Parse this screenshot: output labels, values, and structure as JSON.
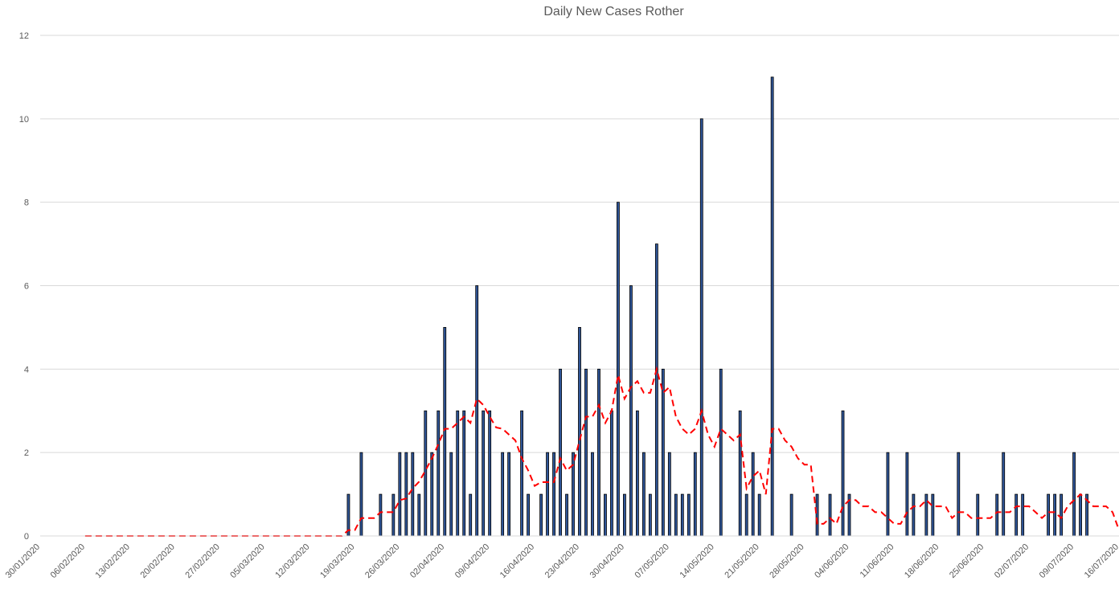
{
  "chart_data": {
    "type": "bar",
    "title": "Daily New Cases Rother",
    "xlabel": "",
    "ylabel": "",
    "ylim": [
      0,
      12
    ],
    "y_ticks": [
      0,
      2,
      4,
      6,
      8,
      10,
      12
    ],
    "x_range": [
      "30/01/2020",
      "16/07/2020"
    ],
    "x_tick_labels": [
      "30/01/2020",
      "06/02/2020",
      "13/02/2020",
      "20/02/2020",
      "27/02/2020",
      "05/03/2020",
      "12/03/2020",
      "19/03/2020",
      "26/03/2020",
      "02/04/2020",
      "09/04/2020",
      "16/04/2020",
      "23/04/2020",
      "30/04/2020",
      "07/05/2020",
      "14/05/2020",
      "21/05/2020",
      "28/05/2020",
      "04/06/2020",
      "11/06/2020",
      "18/06/2020",
      "25/06/2020",
      "02/07/2020",
      "09/07/2020",
      "16/07/2020"
    ],
    "grid": true,
    "legend": "none",
    "series": [
      {
        "type": "bar",
        "color": "#2F5597",
        "points": [
          [
            "18/03/2020",
            1
          ],
          [
            "20/03/2020",
            2
          ],
          [
            "23/03/2020",
            1
          ],
          [
            "25/03/2020",
            1
          ],
          [
            "26/03/2020",
            2
          ],
          [
            "27/03/2020",
            2
          ],
          [
            "28/03/2020",
            2
          ],
          [
            "29/03/2020",
            1
          ],
          [
            "30/03/2020",
            3
          ],
          [
            "31/03/2020",
            2
          ],
          [
            "01/04/2020",
            3
          ],
          [
            "02/04/2020",
            5
          ],
          [
            "03/04/2020",
            2
          ],
          [
            "04/04/2020",
            3
          ],
          [
            "05/04/2020",
            3
          ],
          [
            "06/04/2020",
            1
          ],
          [
            "07/04/2020",
            6
          ],
          [
            "08/04/2020",
            3
          ],
          [
            "09/04/2020",
            3
          ],
          [
            "11/04/2020",
            2
          ],
          [
            "12/04/2020",
            2
          ],
          [
            "14/04/2020",
            3
          ],
          [
            "15/04/2020",
            1
          ],
          [
            "17/04/2020",
            1
          ],
          [
            "18/04/2020",
            2
          ],
          [
            "19/04/2020",
            2
          ],
          [
            "20/04/2020",
            4
          ],
          [
            "21/04/2020",
            1
          ],
          [
            "22/04/2020",
            2
          ],
          [
            "23/04/2020",
            5
          ],
          [
            "24/04/2020",
            4
          ],
          [
            "25/04/2020",
            2
          ],
          [
            "26/04/2020",
            4
          ],
          [
            "27/04/2020",
            1
          ],
          [
            "28/04/2020",
            3
          ],
          [
            "29/04/2020",
            8
          ],
          [
            "30/04/2020",
            1
          ],
          [
            "01/05/2020",
            6
          ],
          [
            "02/05/2020",
            3
          ],
          [
            "03/05/2020",
            2
          ],
          [
            "04/05/2020",
            1
          ],
          [
            "05/05/2020",
            7
          ],
          [
            "06/05/2020",
            4
          ],
          [
            "07/05/2020",
            2
          ],
          [
            "08/05/2020",
            1
          ],
          [
            "09/05/2020",
            1
          ],
          [
            "10/05/2020",
            1
          ],
          [
            "11/05/2020",
            2
          ],
          [
            "12/05/2020",
            10
          ],
          [
            "15/05/2020",
            4
          ],
          [
            "18/05/2020",
            3
          ],
          [
            "19/05/2020",
            1
          ],
          [
            "20/05/2020",
            2
          ],
          [
            "21/05/2020",
            1
          ],
          [
            "23/05/2020",
            11
          ],
          [
            "26/05/2020",
            1
          ],
          [
            "30/05/2020",
            1
          ],
          [
            "01/06/2020",
            1
          ],
          [
            "03/06/2020",
            3
          ],
          [
            "04/06/2020",
            1
          ],
          [
            "10/06/2020",
            2
          ],
          [
            "13/06/2020",
            2
          ],
          [
            "14/06/2020",
            1
          ],
          [
            "16/06/2020",
            1
          ],
          [
            "17/06/2020",
            1
          ],
          [
            "21/06/2020",
            2
          ],
          [
            "24/06/2020",
            1
          ],
          [
            "27/06/2020",
            1
          ],
          [
            "28/06/2020",
            2
          ],
          [
            "30/06/2020",
            1
          ],
          [
            "01/07/2020",
            1
          ],
          [
            "05/07/2020",
            1
          ],
          [
            "06/07/2020",
            1
          ],
          [
            "07/07/2020",
            1
          ],
          [
            "09/07/2020",
            2
          ],
          [
            "10/07/2020",
            1
          ],
          [
            "11/07/2020",
            1
          ]
        ]
      },
      {
        "type": "line",
        "style": "dashed",
        "color": "#FF0000",
        "points": [
          [
            "06/02/2020",
            0
          ],
          [
            "17/03/2020",
            0
          ],
          [
            "18/03/2020",
            0.14
          ],
          [
            "19/03/2020",
            0.14
          ],
          [
            "20/03/2020",
            0.43
          ],
          [
            "22/03/2020",
            0.43
          ],
          [
            "23/03/2020",
            0.57
          ],
          [
            "25/03/2020",
            0.57
          ],
          [
            "26/03/2020",
            0.86
          ],
          [
            "27/03/2020",
            0.9
          ],
          [
            "28/03/2020",
            1.14
          ],
          [
            "29/03/2020",
            1.3
          ],
          [
            "30/03/2020",
            1.57
          ],
          [
            "31/03/2020",
            1.86
          ],
          [
            "01/04/2020",
            2.2
          ],
          [
            "02/04/2020",
            2.57
          ],
          [
            "03/04/2020",
            2.57
          ],
          [
            "04/04/2020",
            2.71
          ],
          [
            "05/04/2020",
            2.86
          ],
          [
            "06/04/2020",
            2.71
          ],
          [
            "07/04/2020",
            3.29
          ],
          [
            "08/04/2020",
            3.14
          ],
          [
            "09/04/2020",
            2.86
          ],
          [
            "10/04/2020",
            2.6
          ],
          [
            "11/04/2020",
            2.57
          ],
          [
            "13/04/2020",
            2.29
          ],
          [
            "14/04/2020",
            1.86
          ],
          [
            "15/04/2020",
            1.57
          ],
          [
            "16/04/2020",
            1.2
          ],
          [
            "17/04/2020",
            1.29
          ],
          [
            "18/04/2020",
            1.29
          ],
          [
            "19/04/2020",
            1.29
          ],
          [
            "20/04/2020",
            1.86
          ],
          [
            "21/04/2020",
            1.57
          ],
          [
            "22/04/2020",
            1.71
          ],
          [
            "23/04/2020",
            2.29
          ],
          [
            "24/04/2020",
            2.86
          ],
          [
            "25/04/2020",
            2.86
          ],
          [
            "26/04/2020",
            3.14
          ],
          [
            "27/04/2020",
            2.71
          ],
          [
            "28/04/2020",
            3.0
          ],
          [
            "29/04/2020",
            3.86
          ],
          [
            "30/04/2020",
            3.29
          ],
          [
            "01/05/2020",
            3.57
          ],
          [
            "02/05/2020",
            3.71
          ],
          [
            "03/05/2020",
            3.43
          ],
          [
            "04/05/2020",
            3.43
          ],
          [
            "05/05/2020",
            4.0
          ],
          [
            "06/05/2020",
            3.43
          ],
          [
            "07/05/2020",
            3.57
          ],
          [
            "08/05/2020",
            2.86
          ],
          [
            "09/05/2020",
            2.57
          ],
          [
            "10/05/2020",
            2.43
          ],
          [
            "11/05/2020",
            2.57
          ],
          [
            "12/05/2020",
            3.0
          ],
          [
            "13/05/2020",
            2.43
          ],
          [
            "14/05/2020",
            2.14
          ],
          [
            "15/05/2020",
            2.57
          ],
          [
            "16/05/2020",
            2.43
          ],
          [
            "17/05/2020",
            2.29
          ],
          [
            "18/05/2020",
            2.43
          ],
          [
            "19/05/2020",
            1.14
          ],
          [
            "20/05/2020",
            1.43
          ],
          [
            "21/05/2020",
            1.57
          ],
          [
            "22/05/2020",
            1.0
          ],
          [
            "23/05/2020",
            2.57
          ],
          [
            "24/05/2020",
            2.57
          ],
          [
            "25/05/2020",
            2.29
          ],
          [
            "26/05/2020",
            2.14
          ],
          [
            "27/05/2020",
            1.86
          ],
          [
            "28/05/2020",
            1.71
          ],
          [
            "29/05/2020",
            1.71
          ],
          [
            "30/05/2020",
            0.29
          ],
          [
            "31/05/2020",
            0.29
          ],
          [
            "01/06/2020",
            0.43
          ],
          [
            "02/06/2020",
            0.29
          ],
          [
            "03/06/2020",
            0.71
          ],
          [
            "04/06/2020",
            0.86
          ],
          [
            "05/06/2020",
            0.86
          ],
          [
            "06/06/2020",
            0.71
          ],
          [
            "07/06/2020",
            0.71
          ],
          [
            "08/06/2020",
            0.57
          ],
          [
            "09/06/2020",
            0.57
          ],
          [
            "10/06/2020",
            0.43
          ],
          [
            "11/06/2020",
            0.29
          ],
          [
            "12/06/2020",
            0.29
          ],
          [
            "13/06/2020",
            0.57
          ],
          [
            "14/06/2020",
            0.71
          ],
          [
            "15/06/2020",
            0.71
          ],
          [
            "16/06/2020",
            0.86
          ],
          [
            "17/06/2020",
            0.71
          ],
          [
            "19/06/2020",
            0.71
          ],
          [
            "20/06/2020",
            0.43
          ],
          [
            "21/06/2020",
            0.57
          ],
          [
            "22/06/2020",
            0.57
          ],
          [
            "23/06/2020",
            0.43
          ],
          [
            "26/06/2020",
            0.43
          ],
          [
            "27/06/2020",
            0.57
          ],
          [
            "29/06/2020",
            0.57
          ],
          [
            "30/06/2020",
            0.71
          ],
          [
            "02/07/2020",
            0.71
          ],
          [
            "03/07/2020",
            0.57
          ],
          [
            "04/07/2020",
            0.43
          ],
          [
            "05/07/2020",
            0.57
          ],
          [
            "06/07/2020",
            0.57
          ],
          [
            "07/07/2020",
            0.43
          ],
          [
            "08/07/2020",
            0.71
          ],
          [
            "09/07/2020",
            0.86
          ],
          [
            "10/07/2020",
            1.0
          ],
          [
            "11/07/2020",
            0.86
          ],
          [
            "12/07/2020",
            0.71
          ],
          [
            "13/07/2020",
            0.71
          ],
          [
            "14/07/2020",
            0.71
          ],
          [
            "15/07/2020",
            0.57
          ],
          [
            "16/07/2020",
            0.14
          ]
        ]
      }
    ]
  }
}
